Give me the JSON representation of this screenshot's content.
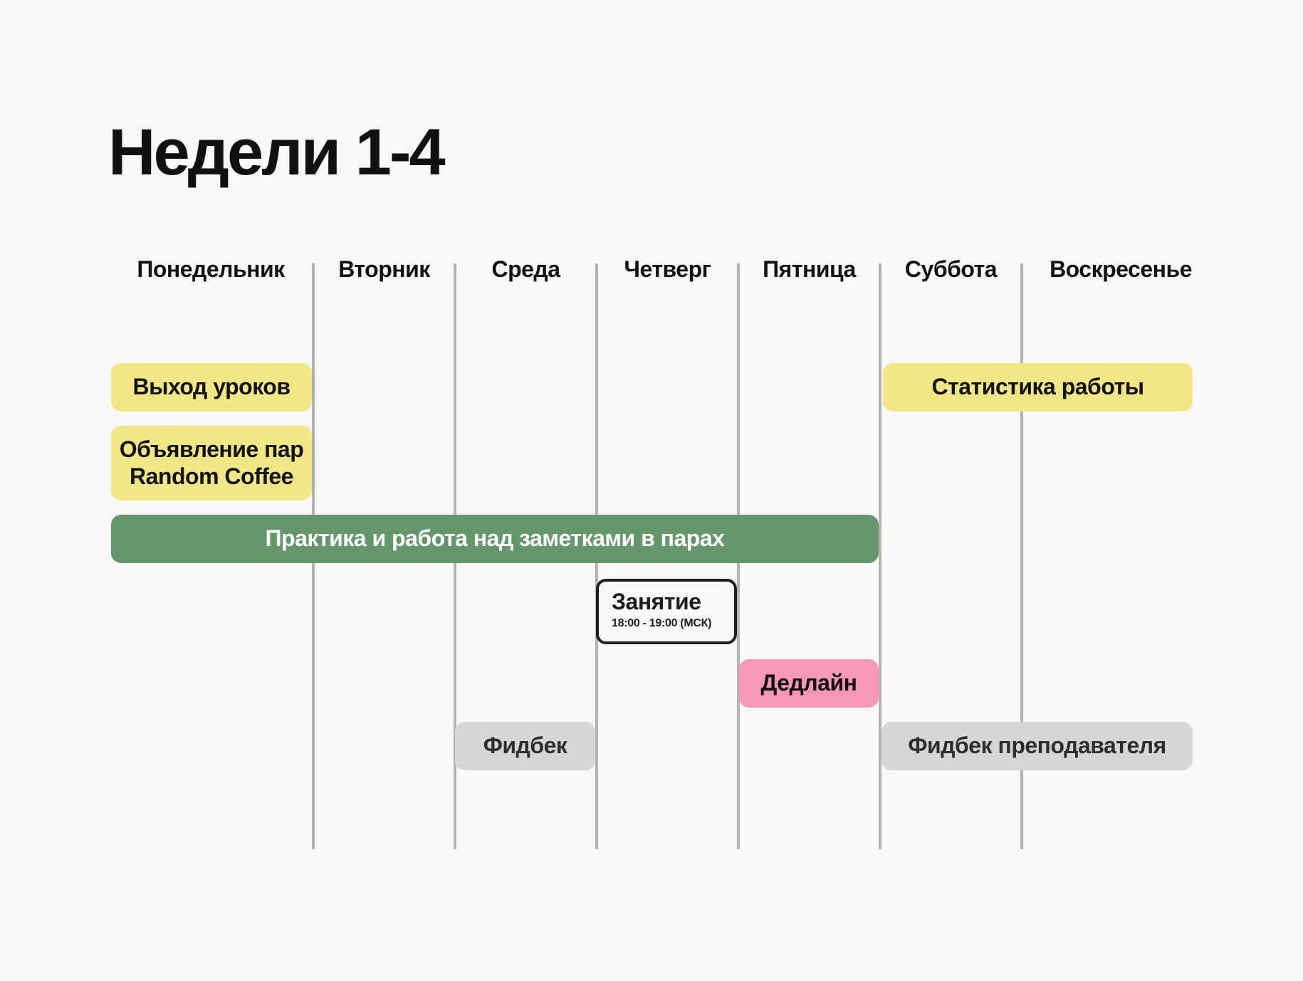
{
  "title": "Недели 1-4",
  "days": [
    "Понедельник",
    "Вторник",
    "Среда",
    "Четверг",
    "Пятница",
    "Суббота",
    "Воскресенье"
  ],
  "events": {
    "lessons": "Выход уроков",
    "coffee_line1": "Объявление пар",
    "coffee_line2": "Random Coffee",
    "practice": "Практика и работа над заметками в парах",
    "class_title": "Занятие",
    "class_time": "18:00 - 19:00 (МСК)",
    "deadline": "Дедлайн",
    "feedback": "Фидбек",
    "stats": "Статистика работы",
    "teacher_feedback": "Фидбек преподавателя"
  },
  "colors": {
    "yellow": "#f2e784",
    "green": "#64986a",
    "pink": "#f898b8",
    "grey": "#d6d6d6",
    "divider": "#b3b3b3",
    "background": "#f8f8f8"
  }
}
